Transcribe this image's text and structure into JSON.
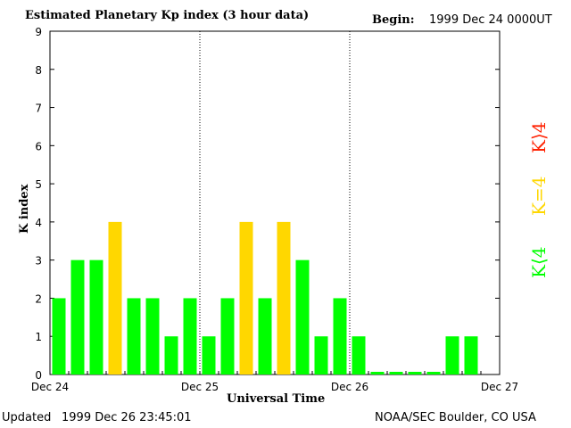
{
  "header": {
    "title": "Estimated Planetary Kp index (3 hour data)",
    "begin_label": "Begin:",
    "begin_value": "1999 Dec 24 0000UT"
  },
  "footer": {
    "updated_label": "Updated",
    "updated_value": "1999 Dec 26 23:45:01",
    "org": "NOAA/SEC Boulder, CO USA"
  },
  "legend": [
    {
      "label": "K<4",
      "display": "K⟨4",
      "color": "#00ff00"
    },
    {
      "label": "K=4",
      "display": "K=4",
      "color": "#ffd700"
    },
    {
      "label": "K>4",
      "display": "K⟩4",
      "color": "#ff2000"
    }
  ],
  "chart_data": {
    "type": "bar",
    "title": "Estimated Planetary Kp index (3 hour data)",
    "xlabel": "Universal Time",
    "ylabel": "K index",
    "ylim": [
      0,
      9
    ],
    "yticks": [
      0,
      1,
      2,
      3,
      4,
      5,
      6,
      7,
      8,
      9
    ],
    "xticks": [
      "Dec 24",
      "Dec 25",
      "Dec 26",
      "Dec 27"
    ],
    "interval_hours": 3,
    "values": [
      2,
      3,
      3,
      4,
      2,
      2,
      1,
      2,
      1,
      2,
      4,
      2,
      4,
      3,
      1,
      2,
      1,
      0,
      0,
      0,
      0,
      1,
      1
    ],
    "colors": {
      "below": "#00ff00",
      "equal": "#ffd700",
      "above": "#ff2000"
    },
    "day_dividers": "dotted"
  }
}
